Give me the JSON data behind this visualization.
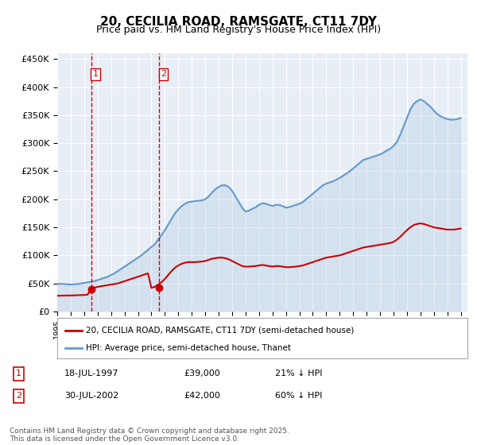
{
  "title": "20, CECILIA ROAD, RAMSGATE, CT11 7DY",
  "subtitle": "Price paid vs. HM Land Registry's House Price Index (HPI)",
  "legend_property": "20, CECILIA ROAD, RAMSGATE, CT11 7DY (semi-detached house)",
  "legend_hpi": "HPI: Average price, semi-detached house, Thanet",
  "ylabel_ticks": [
    "£0",
    "£50K",
    "£100K",
    "£150K",
    "£200K",
    "£250K",
    "£300K",
    "£350K",
    "£400K",
    "£450K"
  ],
  "ytick_values": [
    0,
    50000,
    100000,
    150000,
    200000,
    250000,
    300000,
    350000,
    400000,
    450000
  ],
  "ylim": [
    0,
    460000
  ],
  "xlim_start": 1995.0,
  "xlim_end": 2025.5,
  "purchases": [
    {
      "label": "1",
      "date": 1997.54,
      "price": 39000,
      "pct": "21% ↓ HPI"
    },
    {
      "label": "2",
      "date": 2002.58,
      "price": 42000,
      "pct": "60% ↓ HPI"
    }
  ],
  "purchase_table": [
    {
      "num": "1",
      "date": "18-JUL-1997",
      "price": "£39,000",
      "note": "21% ↓ HPI"
    },
    {
      "num": "2",
      "date": "30-JUL-2002",
      "price": "£42,000",
      "note": "60% ↓ HPI"
    }
  ],
  "property_color": "#cc0000",
  "hpi_color": "#6699cc",
  "dashed_line_color": "#cc0000",
  "background_color": "#ffffff",
  "plot_bg_color": "#e8eef5",
  "grid_color": "#ffffff",
  "footer": "Contains HM Land Registry data © Crown copyright and database right 2025.\nThis data is licensed under the Open Government Licence v3.0.",
  "hpi_years": [
    1995.0,
    1995.25,
    1995.5,
    1995.75,
    1996.0,
    1996.25,
    1996.5,
    1996.75,
    1997.0,
    1997.25,
    1997.5,
    1997.75,
    1998.0,
    1998.25,
    1998.5,
    1998.75,
    1999.0,
    1999.25,
    1999.5,
    1999.75,
    2000.0,
    2000.25,
    2000.5,
    2000.75,
    2001.0,
    2001.25,
    2001.5,
    2001.75,
    2002.0,
    2002.25,
    2002.5,
    2002.75,
    2003.0,
    2003.25,
    2003.5,
    2003.75,
    2004.0,
    2004.25,
    2004.5,
    2004.75,
    2005.0,
    2005.25,
    2005.5,
    2005.75,
    2006.0,
    2006.25,
    2006.5,
    2006.75,
    2007.0,
    2007.25,
    2007.5,
    2007.75,
    2008.0,
    2008.25,
    2008.5,
    2008.75,
    2009.0,
    2009.25,
    2009.5,
    2009.75,
    2010.0,
    2010.25,
    2010.5,
    2010.75,
    2011.0,
    2011.25,
    2011.5,
    2011.75,
    2012.0,
    2012.25,
    2012.5,
    2012.75,
    2013.0,
    2013.25,
    2013.5,
    2013.75,
    2014.0,
    2014.25,
    2014.5,
    2014.75,
    2015.0,
    2015.25,
    2015.5,
    2015.75,
    2016.0,
    2016.25,
    2016.5,
    2016.75,
    2017.0,
    2017.25,
    2017.5,
    2017.75,
    2018.0,
    2018.25,
    2018.5,
    2018.75,
    2019.0,
    2019.25,
    2019.5,
    2019.75,
    2020.0,
    2020.25,
    2020.5,
    2020.75,
    2021.0,
    2021.25,
    2021.5,
    2021.75,
    2022.0,
    2022.25,
    2022.5,
    2022.75,
    2023.0,
    2023.25,
    2023.5,
    2023.75,
    2024.0,
    2024.25,
    2024.5,
    2024.75,
    2025.0
  ],
  "hpi_values": [
    49000,
    49500,
    49000,
    48500,
    48000,
    48500,
    49000,
    50000,
    51000,
    52000,
    53000,
    54000,
    56000,
    58000,
    60000,
    62000,
    65000,
    68000,
    72000,
    76000,
    80000,
    84000,
    88000,
    92000,
    96000,
    100000,
    105000,
    110000,
    115000,
    120000,
    128000,
    136000,
    145000,
    155000,
    165000,
    175000,
    182000,
    188000,
    192000,
    195000,
    196000,
    197000,
    197500,
    198000,
    200000,
    205000,
    212000,
    218000,
    222000,
    225000,
    225000,
    222000,
    215000,
    205000,
    195000,
    185000,
    178000,
    180000,
    183000,
    186000,
    190000,
    193000,
    192000,
    190000,
    188000,
    190000,
    190000,
    188000,
    185000,
    186000,
    188000,
    190000,
    192000,
    195000,
    200000,
    205000,
    210000,
    215000,
    220000,
    225000,
    228000,
    230000,
    232000,
    235000,
    238000,
    242000,
    246000,
    250000,
    255000,
    260000,
    265000,
    270000,
    272000,
    274000,
    276000,
    278000,
    280000,
    283000,
    287000,
    290000,
    295000,
    302000,
    315000,
    330000,
    345000,
    360000,
    370000,
    375000,
    378000,
    375000,
    370000,
    365000,
    358000,
    352000,
    348000,
    345000,
    343000,
    342000,
    342000,
    343000,
    345000
  ],
  "prop_years": [
    1995.0,
    1995.25,
    1995.5,
    1995.75,
    1996.0,
    1996.25,
    1996.5,
    1996.75,
    1997.0,
    1997.25,
    1997.5,
    1997.75,
    1998.0,
    1998.25,
    1998.5,
    1998.75,
    1999.0,
    1999.25,
    1999.5,
    1999.75,
    2000.0,
    2000.25,
    2000.5,
    2000.75,
    2001.0,
    2001.25,
    2001.5,
    2001.75,
    2002.0,
    2002.25,
    2002.5,
    2002.75,
    2003.0,
    2003.25,
    2003.5,
    2003.75,
    2004.0,
    2004.25,
    2004.5,
    2004.75,
    2005.0,
    2005.25,
    2005.5,
    2005.75,
    2006.0,
    2006.25,
    2006.5,
    2006.75,
    2007.0,
    2007.25,
    2007.5,
    2007.75,
    2008.0,
    2008.25,
    2008.5,
    2008.75,
    2009.0,
    2009.25,
    2009.5,
    2009.75,
    2010.0,
    2010.25,
    2010.5,
    2010.75,
    2011.0,
    2011.25,
    2011.5,
    2011.75,
    2012.0,
    2012.25,
    2012.5,
    2012.75,
    2013.0,
    2013.25,
    2013.5,
    2013.75,
    2014.0,
    2014.25,
    2014.5,
    2014.75,
    2015.0,
    2015.25,
    2015.5,
    2015.75,
    2016.0,
    2016.25,
    2016.5,
    2016.75,
    2017.0,
    2017.25,
    2017.5,
    2017.75,
    2018.0,
    2018.25,
    2018.5,
    2018.75,
    2019.0,
    2019.25,
    2019.5,
    2019.75,
    2020.0,
    2020.25,
    2020.5,
    2020.75,
    2021.0,
    2021.25,
    2021.5,
    2021.75,
    2022.0,
    2022.25,
    2022.5,
    2022.75,
    2023.0,
    2023.25,
    2023.5,
    2023.75,
    2024.0,
    2024.25,
    2024.5,
    2024.75,
    2025.0
  ],
  "prop_values": [
    28000,
    28200,
    28400,
    28500,
    28600,
    28800,
    29000,
    29200,
    29500,
    30000,
    39000,
    42000,
    44000,
    45000,
    46000,
    47000,
    48000,
    49000,
    50000,
    52000,
    54000,
    56000,
    58000,
    60000,
    62000,
    64000,
    66000,
    68000,
    42000,
    44000,
    48000,
    52000,
    58000,
    65000,
    72000,
    78000,
    82000,
    85000,
    87000,
    88000,
    88000,
    88000,
    88500,
    89000,
    90000,
    92000,
    94000,
    95000,
    96000,
    96000,
    95000,
    93000,
    90000,
    87000,
    84000,
    81000,
    80000,
    80000,
    80500,
    81000,
    82000,
    83000,
    82000,
    81000,
    80000,
    81000,
    81000,
    80000,
    79000,
    79000,
    79500,
    80000,
    81000,
    82000,
    84000,
    86000,
    88000,
    90000,
    92000,
    94000,
    96000,
    97000,
    98000,
    99000,
    100000,
    102000,
    104000,
    106000,
    108000,
    110000,
    112000,
    114000,
    115000,
    116000,
    117000,
    118000,
    119000,
    120000,
    121000,
    122000,
    124000,
    128000,
    133000,
    139000,
    145000,
    150000,
    154000,
    156000,
    157000,
    156000,
    154000,
    152000,
    150000,
    149000,
    148000,
    147000,
    146000,
    146000,
    146000,
    147000,
    148000
  ]
}
